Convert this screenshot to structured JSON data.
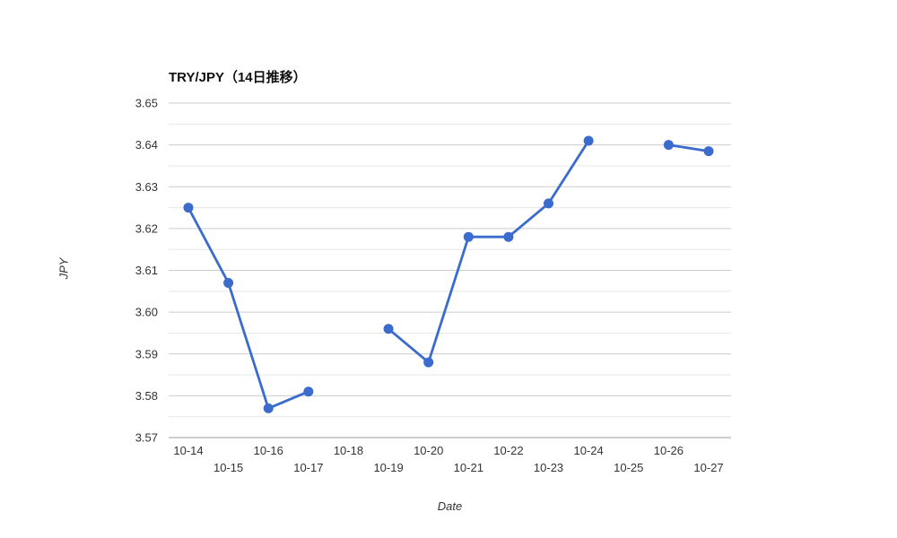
{
  "page": {
    "background_color": "#ffffff"
  },
  "chart_data": {
    "type": "line",
    "title": "TRY/JPY（14日推移）",
    "xlabel": "Date",
    "ylabel": "JPY",
    "categories": [
      "10-14",
      "10-15",
      "10-16",
      "10-17",
      "10-18",
      "10-19",
      "10-20",
      "10-21",
      "10-22",
      "10-23",
      "10-24",
      "10-25",
      "10-26",
      "10-27"
    ],
    "values": [
      3.625,
      3.607,
      3.577,
      3.581,
      null,
      3.596,
      3.588,
      3.618,
      3.618,
      3.626,
      3.641,
      null,
      3.64,
      3.6385
    ],
    "missing_dates": [
      "10-18",
      "10-25"
    ],
    "ylim": [
      3.57,
      3.65
    ],
    "y_ticks": [
      "3.57",
      "3.58",
      "3.59",
      "3.60",
      "3.61",
      "3.62",
      "3.63",
      "3.64",
      "3.65"
    ],
    "y_minor_step": 0.005,
    "grid": true,
    "legend": "none",
    "line_color": "#3a6bcd",
    "marker": "circle",
    "marker_radius": 5.5,
    "major_grid_color": "#cccccc",
    "minor_grid_color": "#e7e7e7",
    "axis_line_color": "#9b9b9b",
    "tick_label_color": "#333333",
    "x_tick_rows": "staggered"
  }
}
